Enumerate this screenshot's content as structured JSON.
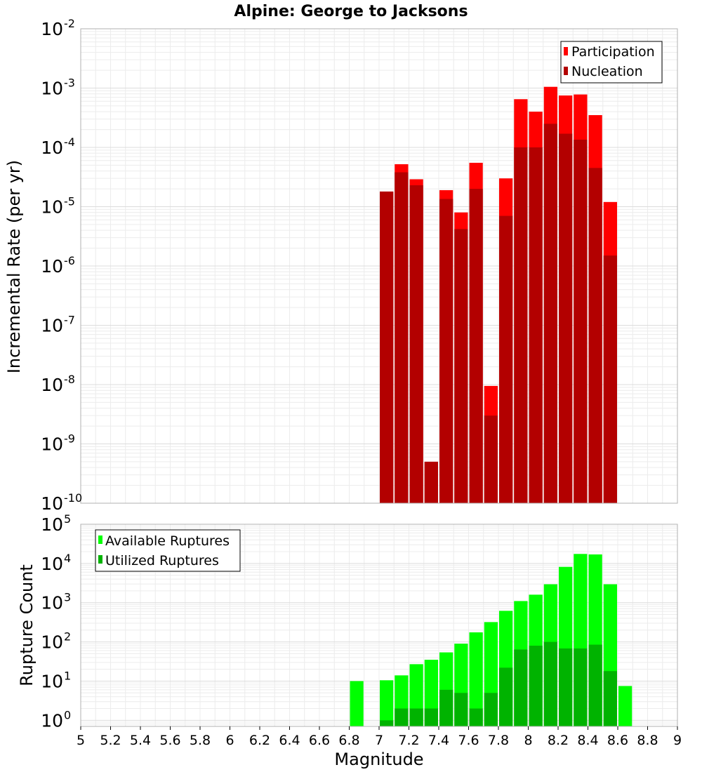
{
  "title": "Alpine: George to Jacksons",
  "chart_data": [
    {
      "type": "bar",
      "name": "rate-panel",
      "ylabel": "Incremental Rate (per yr)",
      "yscale": "log",
      "ylim": [
        1e-10,
        0.01
      ],
      "xlim": [
        5,
        9
      ],
      "ytick_exponents": [
        "-10",
        "-9",
        "-8",
        "-7",
        "-6",
        "-5",
        "-4",
        "-3",
        "-2"
      ],
      "grid": true,
      "legend_position": "top-right",
      "x": [
        7.0,
        7.1,
        7.2,
        7.3,
        7.4,
        7.5,
        7.6,
        7.7,
        7.8,
        7.9,
        8.0,
        8.1,
        8.2,
        8.3,
        8.4,
        8.5
      ],
      "series": [
        {
          "name": "Participation",
          "color": "#ff0000",
          "values": [
            1.8e-05,
            5.2e-05,
            2.9e-05,
            5e-10,
            1.9e-05,
            8e-06,
            5.5e-05,
            9.5e-09,
            3e-05,
            0.00065,
            0.0004,
            0.00105,
            0.00075,
            0.00078,
            0.00035,
            1.2e-05
          ]
        },
        {
          "name": "Nucleation",
          "color": "#b30000",
          "values": [
            1.8e-05,
            3.8e-05,
            2.3e-05,
            5e-10,
            1.35e-05,
            4.2e-06,
            2e-05,
            3e-09,
            7e-06,
            0.0001,
            0.0001,
            0.00025,
            0.00017,
            0.000135,
            4.5e-05,
            1.5e-06
          ]
        }
      ]
    },
    {
      "type": "bar",
      "name": "count-panel",
      "ylabel": "Rupture Count",
      "xlabel": "Magnitude",
      "yscale": "log",
      "ylim": [
        0.7,
        100000.0
      ],
      "xlim": [
        5,
        9
      ],
      "ytick_exponents": [
        "0",
        "1",
        "2",
        "3",
        "4",
        "5"
      ],
      "xticks": [
        "5",
        "5.2",
        "5.4",
        "5.6",
        "5.8",
        "6",
        "6.2",
        "6.4",
        "6.6",
        "6.8",
        "7",
        "7.2",
        "7.4",
        "7.6",
        "7.8",
        "8",
        "8.2",
        "8.4",
        "8.6",
        "8.8",
        "9"
      ],
      "grid": true,
      "legend_position": "top-left",
      "x": [
        6.8,
        7.0,
        7.1,
        7.2,
        7.3,
        7.4,
        7.5,
        7.6,
        7.7,
        7.8,
        7.9,
        8.0,
        8.1,
        8.2,
        8.3,
        8.4,
        8.5,
        8.6
      ],
      "series": [
        {
          "name": "Available Ruptures",
          "color": "#00ff00",
          "values": [
            10,
            10.5,
            14,
            27,
            35,
            54,
            90,
            175,
            320,
            620,
            1100,
            1600,
            2950,
            8200,
            17500,
            17000,
            2950,
            7.5
          ]
        },
        {
          "name": "Utilized Ruptures",
          "color": "#00b300",
          "values": [
            0,
            1,
            2,
            2,
            2,
            6,
            5,
            2,
            5,
            22,
            64,
            80,
            100,
            68,
            68,
            85,
            18,
            0
          ]
        }
      ]
    }
  ]
}
